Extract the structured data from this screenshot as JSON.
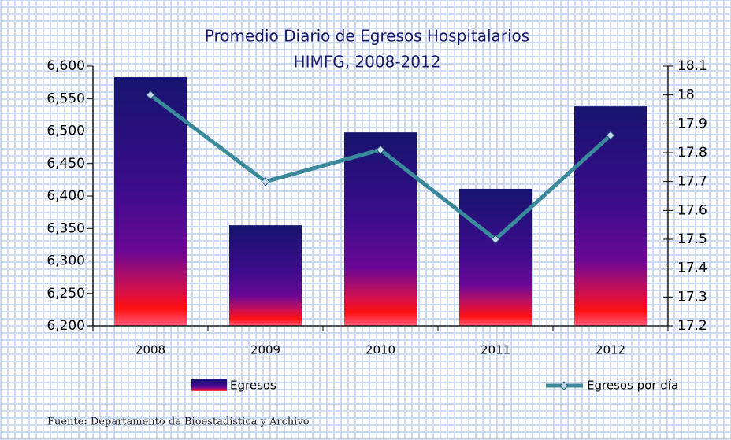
{
  "chart_data": {
    "type": "bar_line",
    "title": [
      "Promedio Diario de Egresos Hospitalarios",
      "HIMFG, 2008-2012"
    ],
    "categories": [
      "2008",
      "2009",
      "2010",
      "2011",
      "2012"
    ],
    "series": [
      {
        "name": "Egresos",
        "type": "bar",
        "color": "#16146e",
        "values": [
          6583,
          6355,
          6498,
          6411,
          6538
        ]
      },
      {
        "name": "Egresos por día",
        "type": "line",
        "axis": "y2",
        "color": "#3a8a9c",
        "values": [
          18.0,
          17.7,
          17.81,
          17.5,
          17.86
        ]
      }
    ],
    "ylim": [
      6200,
      6600
    ],
    "yticks": [
      {
        "value": 6200,
        "label": "6,200"
      },
      {
        "value": 6250,
        "label": "6,250"
      },
      {
        "value": 6300,
        "label": "6,300"
      },
      {
        "value": 6350,
        "label": "6,350"
      },
      {
        "value": 6400,
        "label": "6,400"
      },
      {
        "value": 6450,
        "label": "6,450"
      },
      {
        "value": 6500,
        "label": "6,500"
      },
      {
        "value": 6550,
        "label": "6,550"
      },
      {
        "value": 6600,
        "label": "6,600"
      }
    ],
    "y2lim": [
      17.2,
      18.1
    ],
    "y2ticks": [
      17.2,
      17.3,
      17.4,
      17.5,
      17.6,
      17.7,
      17.8,
      17.9,
      18,
      18.1
    ],
    "source": "Fuente: Departamento de Bioestadística y Archivo"
  }
}
